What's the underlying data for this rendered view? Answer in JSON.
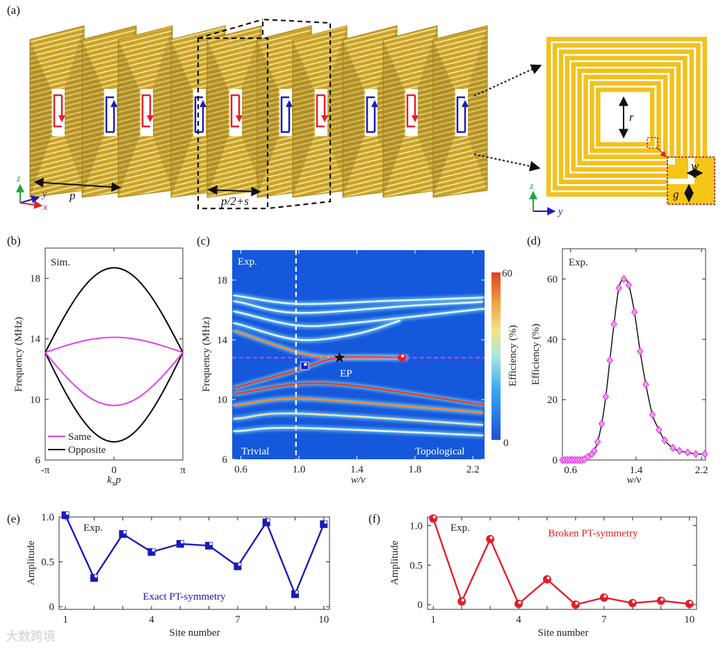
{
  "panel_labels": {
    "a": "(a)",
    "b": "(b)",
    "c": "(c)",
    "d": "(d)",
    "e": "(e)",
    "f": "(f)"
  },
  "panel_a": {
    "labels": {
      "p": "p",
      "p_half_s": "p/2+s",
      "z": "z",
      "y": "y",
      "x": "x",
      "r": "r",
      "w": "w",
      "g": "g",
      "z_right": "z",
      "y_right": "y"
    },
    "plate_currents": [
      "red-down",
      "blue-up",
      "red-down",
      "blue-up",
      "red-down",
      "blue-up",
      "red-down",
      "blue-up",
      "red-down",
      "blue-up"
    ]
  },
  "watermark": "大数跨境",
  "colors": {
    "gold": "#d4b032",
    "red": "#e0202a",
    "blue": "#1a1ab8",
    "magenta": "#e23ee6",
    "heat_bg": "#1558dc"
  },
  "chart_data": [
    {
      "id": "b",
      "type": "line",
      "annotation": "Sim.",
      "xlabel": {
        "main": "k",
        "sub": "x",
        "tail": "p"
      },
      "ylabel": "Frequency (MHz)",
      "xlim": [
        -3.1416,
        3.1416
      ],
      "ylim": [
        6,
        20
      ],
      "xticks": [
        {
          "v": -3.1416,
          "label": "-π"
        },
        {
          "v": 0,
          "label": "0"
        },
        {
          "v": 3.1416,
          "label": "π"
        }
      ],
      "yticks": [
        6,
        10,
        14,
        18
      ],
      "legend": {
        "position": "bottom-left",
        "entries": [
          "Same",
          "Opposite"
        ]
      },
      "x": [
        -3.1416,
        -2.618,
        -2.0944,
        -1.5708,
        -1.0472,
        -0.5236,
        0,
        0.5236,
        1.0472,
        1.5708,
        2.0944,
        2.618,
        3.1416
      ],
      "series": [
        {
          "name": "Opposite",
          "color": "#000000",
          "values": [
            13.1,
            14.55,
            15.9,
            17.06,
            17.95,
            18.51,
            18.7,
            18.51,
            17.95,
            17.06,
            15.9,
            14.55,
            13.1
          ]
        },
        {
          "name": "Opposite",
          "color": "#000000",
          "values": [
            13.1,
            11.57,
            10.15,
            8.93,
            7.99,
            7.4,
            7.2,
            7.4,
            7.99,
            8.93,
            10.15,
            11.57,
            13.1
          ]
        },
        {
          "name": "Same",
          "color": "#e23ee6",
          "values": [
            13.1,
            13.36,
            13.6,
            13.81,
            13.97,
            14.07,
            14.1,
            14.07,
            13.97,
            13.81,
            13.6,
            13.36,
            13.1
          ]
        },
        {
          "name": "Same",
          "color": "#e23ee6",
          "values": [
            13.1,
            12.19,
            11.35,
            10.63,
            10.07,
            9.72,
            9.6,
            9.72,
            10.07,
            10.63,
            11.35,
            12.19,
            13.1
          ]
        }
      ]
    },
    {
      "id": "c",
      "type": "heatmap",
      "annotation": "Exp.",
      "xlabel": "w/v",
      "ylabel": "Frequency (MHz)",
      "xlim": [
        0.54,
        2.28
      ],
      "ylim": [
        6,
        20
      ],
      "xticks": [
        {
          "v": 0.6,
          "label": "0.6"
        },
        {
          "v": 1.0,
          "label": "1.0"
        },
        {
          "v": 1.4,
          "label": "1.4"
        },
        {
          "v": 1.8,
          "label": "1.8"
        },
        {
          "v": 2.2,
          "label": "2.2"
        }
      ],
      "yticks": [
        6,
        10,
        14,
        18
      ],
      "colorbar": {
        "label": "Efficiency (%)",
        "min": 0,
        "max": 60,
        "min_label": "0",
        "max_label": "60"
      },
      "region_labels": {
        "left": "Trivial",
        "right": "Topological"
      },
      "phase_boundary_w_over_v": 0.98,
      "ep_frequency": 12.8,
      "markers": [
        {
          "kind": "square",
          "w_over_v": 1.04,
          "frequency": 12.26,
          "color": "#1a1ab8"
        },
        {
          "kind": "star",
          "w_over_v": 1.28,
          "frequency": 12.8,
          "color": "#111111",
          "label": "EP"
        },
        {
          "kind": "circle",
          "w_over_v": 1.71,
          "frequency": 12.8,
          "color": "#e0203a"
        }
      ],
      "bands": [
        {
          "x": [
            0.55,
            0.6,
            1.0,
            1.6,
            2.2,
            2.27
          ],
          "freq": [
            17.0,
            16.9,
            16.4,
            16.6,
            16.8,
            16.85
          ],
          "efficiency": 12
        },
        {
          "x": [
            0.55,
            0.6,
            1.0,
            1.8,
            2.2,
            2.27
          ],
          "freq": [
            16.6,
            16.5,
            15.8,
            16.3,
            16.5,
            16.55
          ],
          "efficiency": 18
        },
        {
          "x": [
            0.55,
            0.6,
            1.0,
            1.4,
            2.2,
            2.27
          ],
          "freq": [
            15.9,
            15.8,
            14.95,
            15.15,
            16.0,
            16.05
          ],
          "efficiency": 20
        },
        {
          "x": [
            0.55,
            0.6,
            1.0,
            1.4,
            1.7
          ],
          "freq": [
            15.1,
            15.0,
            14.0,
            14.4,
            15.3
          ],
          "efficiency": 22
        },
        {
          "x": [
            0.55,
            0.6,
            1.0,
            1.28,
            1.75
          ],
          "freq": [
            14.6,
            14.45,
            13.15,
            12.8,
            12.8
          ],
          "efficiency": 45
        },
        {
          "x": [
            0.55,
            0.6,
            1.0,
            1.28,
            1.75
          ],
          "freq": [
            10.8,
            10.9,
            12.0,
            12.8,
            12.8
          ],
          "efficiency": 60
        },
        {
          "x": [
            0.55,
            0.6,
            1.0,
            1.4,
            2.2,
            2.27
          ],
          "freq": [
            10.35,
            10.44,
            11.05,
            10.9,
            9.75,
            9.7
          ],
          "efficiency": 55
        },
        {
          "x": [
            0.55,
            0.6,
            1.0,
            1.8,
            2.27
          ],
          "freq": [
            9.6,
            9.67,
            10.06,
            9.5,
            9.13
          ],
          "efficiency": 45
        },
        {
          "x": [
            0.55,
            0.6,
            1.0,
            2.27
          ],
          "freq": [
            8.7,
            8.75,
            9.06,
            8.3
          ],
          "efficiency": 35
        },
        {
          "x": [
            0.55,
            0.6,
            1.0,
            2.27
          ],
          "freq": [
            7.88,
            7.9,
            8.1,
            7.6
          ],
          "efficiency": 18
        }
      ]
    },
    {
      "id": "d",
      "type": "line",
      "annotation": "Exp.",
      "xlabel": "w/v",
      "ylabel": "Efficiency (%)",
      "xlim": [
        0.5,
        2.25
      ],
      "ylim": [
        0,
        70
      ],
      "xticks": [
        {
          "v": 0.6,
          "label": "0.6"
        },
        {
          "v": 1.4,
          "label": "1.4"
        },
        {
          "v": 2.2,
          "label": "2.2"
        }
      ],
      "yticks": [
        0,
        20,
        40,
        60
      ],
      "x": [
        0.5,
        0.53,
        0.56,
        0.59,
        0.62,
        0.65,
        0.68,
        0.71,
        0.74,
        0.77,
        0.81,
        0.86,
        0.89,
        0.93,
        0.98,
        1.03,
        1.08,
        1.13,
        1.19,
        1.25,
        1.31,
        1.38,
        1.45,
        1.52,
        1.6,
        1.68,
        1.75,
        1.85,
        1.93,
        2.03,
        2.13,
        2.24
      ],
      "values": [
        0,
        0,
        0,
        0,
        0,
        0,
        0,
        0,
        0,
        0.3,
        1,
        2,
        3,
        6,
        12,
        21,
        33,
        45,
        57,
        60,
        58,
        49,
        36,
        25,
        15,
        10,
        6.5,
        4,
        3,
        2.5,
        2,
        2
      ]
    },
    {
      "id": "e",
      "type": "line",
      "annotation": "Exp.",
      "caption": "Exact PT-symmetry",
      "xlabel": "Site number",
      "ylabel": "Amplitude",
      "xlim": [
        0.78,
        10.2
      ],
      "ylim": [
        -0.03,
        1.0
      ],
      "xticks": [
        {
          "v": 1,
          "label": "1"
        },
        {
          "v": 4,
          "label": "4"
        },
        {
          "v": 7,
          "label": "7"
        },
        {
          "v": 10,
          "label": "10"
        }
      ],
      "yticks": [
        {
          "v": 0,
          "label": "0"
        },
        {
          "v": 0.5,
          "label": "0.5"
        },
        {
          "v": 1.0,
          "label": "1.0"
        }
      ],
      "x": [
        1,
        2,
        3,
        4,
        5,
        6,
        7,
        8,
        9,
        10
      ],
      "values": [
        1.02,
        0.32,
        0.81,
        0.61,
        0.7,
        0.68,
        0.45,
        0.94,
        0.14,
        0.92
      ]
    },
    {
      "id": "f",
      "type": "line",
      "annotation": "Exp.",
      "caption": "Broken PT-symmetry",
      "xlabel": "Site number",
      "ylabel": "Amplitude",
      "xlim": [
        0.8,
        10.25
      ],
      "ylim": [
        -0.06,
        1.11
      ],
      "xticks": [
        {
          "v": 1,
          "label": "1"
        },
        {
          "v": 4,
          "label": "4"
        },
        {
          "v": 7,
          "label": "7"
        },
        {
          "v": 10,
          "label": "10"
        }
      ],
      "yticks": [
        {
          "v": 0,
          "label": "0"
        },
        {
          "v": 0.5,
          "label": "0.5"
        },
        {
          "v": 1.0,
          "label": "1.0"
        }
      ],
      "x": [
        1,
        2,
        3,
        4,
        5,
        6,
        7,
        8,
        9,
        10
      ],
      "values": [
        1.09,
        0.04,
        0.83,
        0.01,
        0.32,
        0.0,
        0.09,
        0.02,
        0.05,
        0.01
      ]
    }
  ]
}
